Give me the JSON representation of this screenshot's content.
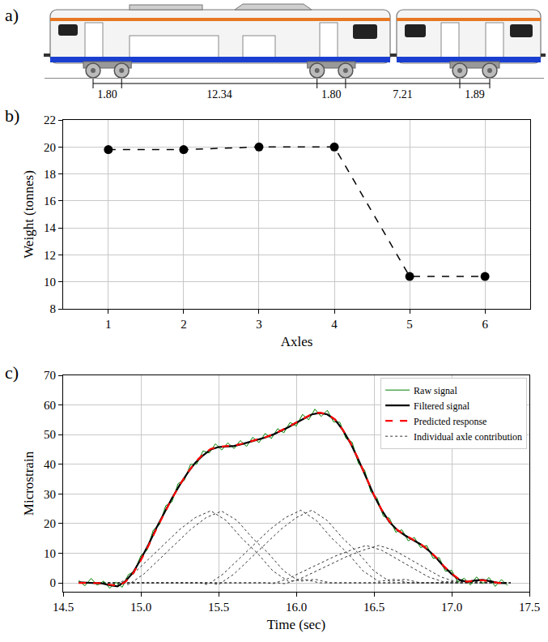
{
  "diagram": {
    "label": "a)",
    "axle_spacings": [
      "1.80",
      "12.34",
      "1.80",
      "7.21",
      "1.89"
    ]
  },
  "chart_data": [
    {
      "label": "b)",
      "type": "line",
      "x": [
        1,
        2,
        3,
        4,
        5,
        6
      ],
      "values": [
        19.8,
        19.8,
        20.0,
        20.0,
        10.4,
        10.4
      ],
      "color": "#000000",
      "marker": "circle",
      "line_style": "dash",
      "xlabel": "Axles",
      "ylabel": "Weight (tonnes)",
      "xlim": [
        0.4,
        6.6
      ],
      "ylim": [
        8,
        22
      ],
      "xticks": [
        1,
        2,
        3,
        4,
        5,
        6
      ],
      "yticks": [
        8,
        10,
        12,
        14,
        16,
        18,
        20,
        22
      ],
      "grid": true
    },
    {
      "label": "c)",
      "type": "line",
      "xlabel": "Time (sec)",
      "ylabel": "Microstrain",
      "xlim": [
        14.5,
        17.5
      ],
      "ylim": [
        -3,
        70
      ],
      "xticks": [
        14.5,
        {
          "value": 15,
          "label": "15.0"
        },
        15.5,
        {
          "value": 16,
          "label": "16.0"
        },
        16.5,
        {
          "value": 17,
          "label": "17.0"
        },
        17.5
      ],
      "yticks": [
        0,
        10,
        20,
        30,
        40,
        50,
        60,
        70
      ],
      "grid": true,
      "legend": "upper right",
      "series": [
        {
          "name": "Raw signal",
          "color": "#008000",
          "line_style": "solid",
          "x": [
            14.6,
            14.64,
            14.68,
            14.72,
            14.76,
            14.8,
            14.84,
            14.88,
            14.92,
            14.96,
            15.0,
            15.04,
            15.08,
            15.12,
            15.16,
            15.2,
            15.24,
            15.28,
            15.32,
            15.36,
            15.4,
            15.44,
            15.48,
            15.52,
            15.56,
            15.6,
            15.64,
            15.68,
            15.72,
            15.76,
            15.8,
            15.84,
            15.88,
            15.92,
            15.96,
            16.0,
            16.04,
            16.08,
            16.12,
            16.16,
            16.2,
            16.24,
            16.28,
            16.32,
            16.36,
            16.4,
            16.44,
            16.48,
            16.52,
            16.56,
            16.6,
            16.64,
            16.68,
            16.72,
            16.76,
            16.8,
            16.84,
            16.88,
            16.92,
            16.96,
            17.0,
            17.04,
            17.08,
            17.12,
            17.16,
            17.2,
            17.24,
            17.28,
            17.32,
            17.36
          ],
          "values": [
            0.8,
            -1.0,
            1.5,
            -0.8,
            0.6,
            -1.8,
            0.2,
            -1.5,
            2.8,
            3.9,
            9.2,
            11.0,
            17.8,
            19.6,
            26.0,
            27.3,
            33.5,
            34.6,
            40.0,
            40.1,
            44.5,
            43.8,
            46.9,
            44.8,
            47.2,
            45.3,
            48.0,
            46.0,
            49.1,
            47.3,
            50.4,
            48.7,
            52.0,
            50.6,
            54.1,
            52.9,
            56.8,
            55.0,
            58.6,
            56.1,
            58.2,
            54.3,
            54.2,
            48.7,
            47.4,
            40.3,
            38.0,
            30.7,
            28.6,
            22.5,
            21.8,
            17.1,
            17.9,
            14.2,
            15.3,
            11.9,
            12.6,
            8.3,
            8.5,
            3.9,
            4.2,
            0.2,
            1.6,
            -0.7,
            2.0,
            -0.3,
            1.8,
            -1.2,
            1.1,
            -0.9
          ]
        },
        {
          "name": "Filtered signal",
          "color": "#000000",
          "line_style": "solid",
          "x": [
            14.6,
            14.65,
            14.7,
            14.75,
            14.8,
            14.85,
            14.9,
            14.95,
            15.0,
            15.05,
            15.1,
            15.15,
            15.2,
            15.25,
            15.3,
            15.35,
            15.4,
            15.45,
            15.5,
            15.55,
            15.6,
            15.65,
            15.7,
            15.75,
            15.8,
            15.85,
            15.9,
            15.95,
            16.0,
            16.05,
            16.1,
            16.15,
            16.2,
            16.25,
            16.3,
            16.35,
            16.4,
            16.45,
            16.5,
            16.55,
            16.6,
            16.65,
            16.7,
            16.75,
            16.8,
            16.85,
            16.9,
            16.95,
            17.0,
            17.05,
            17.1,
            17.15,
            17.2,
            17.25,
            17.3,
            17.35
          ],
          "values": [
            0.2,
            0.1,
            0,
            -0.2,
            -0.8,
            -1.2,
            0.5,
            3.5,
            8,
            13,
            18.5,
            23.5,
            28.5,
            33,
            37,
            40.5,
            43,
            45,
            45.8,
            46,
            46.2,
            46.8,
            47.5,
            48.2,
            49,
            50,
            51.2,
            52.5,
            54,
            55.5,
            56.8,
            57.3,
            56.8,
            55,
            51.5,
            47,
            41.5,
            35.5,
            29.5,
            24.5,
            20.5,
            17.8,
            16,
            14.5,
            13,
            11,
            8.5,
            5.5,
            3,
            1,
            0.3,
            0.8,
            1,
            0.5,
            0,
            -0.1
          ]
        },
        {
          "name": "Predicted response",
          "color": "#ff0000",
          "line_style": "dash",
          "x": [
            14.6,
            14.65,
            14.7,
            14.75,
            14.8,
            14.85,
            14.9,
            14.95,
            15.0,
            15.05,
            15.1,
            15.15,
            15.2,
            15.25,
            15.3,
            15.35,
            15.4,
            15.45,
            15.5,
            15.55,
            15.6,
            15.65,
            15.7,
            15.75,
            15.8,
            15.85,
            15.9,
            15.95,
            16.0,
            16.05,
            16.1,
            16.15,
            16.2,
            16.25,
            16.3,
            16.35,
            16.4,
            16.45,
            16.5,
            16.55,
            16.6,
            16.65,
            16.7,
            16.75,
            16.8,
            16.85,
            16.9,
            16.95,
            17.0,
            17.05,
            17.1,
            17.15,
            17.2,
            17.25,
            17.3,
            17.35
          ],
          "values": [
            0,
            0,
            0,
            -0.1,
            -0.6,
            -1.0,
            0.3,
            3.2,
            7.6,
            12.6,
            18.2,
            23.3,
            28.4,
            33,
            37.1,
            40.7,
            43.3,
            45.2,
            45.9,
            46.1,
            46.3,
            46.9,
            47.6,
            48.3,
            49.1,
            50.1,
            51.3,
            52.6,
            54.1,
            55.6,
            56.9,
            57.4,
            56.9,
            55.1,
            51.6,
            47.1,
            41.6,
            35.6,
            29.6,
            24.6,
            20.6,
            17.9,
            16.1,
            14.6,
            13.1,
            11.1,
            8.6,
            5.6,
            3.1,
            1.1,
            0.4,
            0.8,
            0.9,
            0.4,
            0,
            0
          ]
        },
        {
          "name": "Individual axle contribution",
          "color": "#333333",
          "line_style": "dot",
          "curves": [
            {
              "x": [
                14.6,
                14.8,
                14.85,
                14.95,
                15.05,
                15.15,
                15.25,
                15.35,
                15.45,
                15.55,
                15.65,
                15.75,
                15.85,
                15.95,
                16.05,
                16.15,
                17.38
              ],
              "values": [
                0,
                0,
                -0.6,
                3,
                8,
                13,
                18,
                22,
                24.3,
                21,
                15,
                10,
                4,
                0.5,
                1.2,
                0,
                0
              ]
            },
            {
              "x": [
                14.6,
                14.87,
                14.92,
                15.02,
                15.12,
                15.22,
                15.32,
                15.42,
                15.52,
                15.62,
                15.72,
                15.82,
                15.92,
                16.02,
                16.12,
                16.22,
                17.38
              ],
              "values": [
                0,
                0,
                -0.6,
                3,
                8,
                13,
                18,
                22,
                24.2,
                21,
                15,
                10,
                4,
                0.5,
                1.2,
                0,
                0
              ]
            },
            {
              "x": [
                14.6,
                15.38,
                15.43,
                15.53,
                15.63,
                15.73,
                15.83,
                15.93,
                16.03,
                16.13,
                16.23,
                16.33,
                16.43,
                16.53,
                16.63,
                16.73,
                17.38
              ],
              "values": [
                0,
                0,
                -0.6,
                3,
                8,
                13,
                18,
                22,
                24.5,
                21,
                15,
                10,
                4,
                0.5,
                1.2,
                0,
                0
              ]
            },
            {
              "x": [
                14.6,
                15.45,
                15.5,
                15.6,
                15.7,
                15.8,
                15.9,
                16.0,
                16.1,
                16.2,
                16.3,
                16.4,
                16.5,
                16.6,
                16.7,
                16.8,
                17.38
              ],
              "values": [
                0,
                0,
                -0.6,
                3,
                8,
                13,
                18,
                22,
                24.5,
                21,
                15,
                10,
                4,
                0.5,
                1.2,
                0,
                0
              ]
            },
            {
              "x": [
                14.6,
                15.8,
                15.85,
                15.95,
                16.05,
                16.15,
                16.25,
                16.35,
                16.45,
                16.55,
                16.65,
                16.75,
                16.85,
                16.95,
                17.05,
                17.15,
                17.38
              ],
              "values": [
                0,
                0,
                -0.3,
                1.5,
                4,
                6.5,
                9,
                11,
                12.6,
                11,
                8,
                5,
                2,
                0.3,
                0.6,
                0,
                0
              ]
            },
            {
              "x": [
                14.6,
                15.88,
                15.93,
                16.03,
                16.13,
                16.23,
                16.33,
                16.43,
                16.53,
                16.63,
                16.73,
                16.83,
                16.93,
                17.03,
                17.13,
                17.23,
                17.38
              ],
              "values": [
                0,
                0,
                -0.3,
                1.5,
                4,
                6.5,
                9,
                11,
                12.6,
                11,
                8,
                5,
                2,
                0.3,
                0.6,
                0,
                0
              ]
            }
          ]
        }
      ]
    }
  ]
}
